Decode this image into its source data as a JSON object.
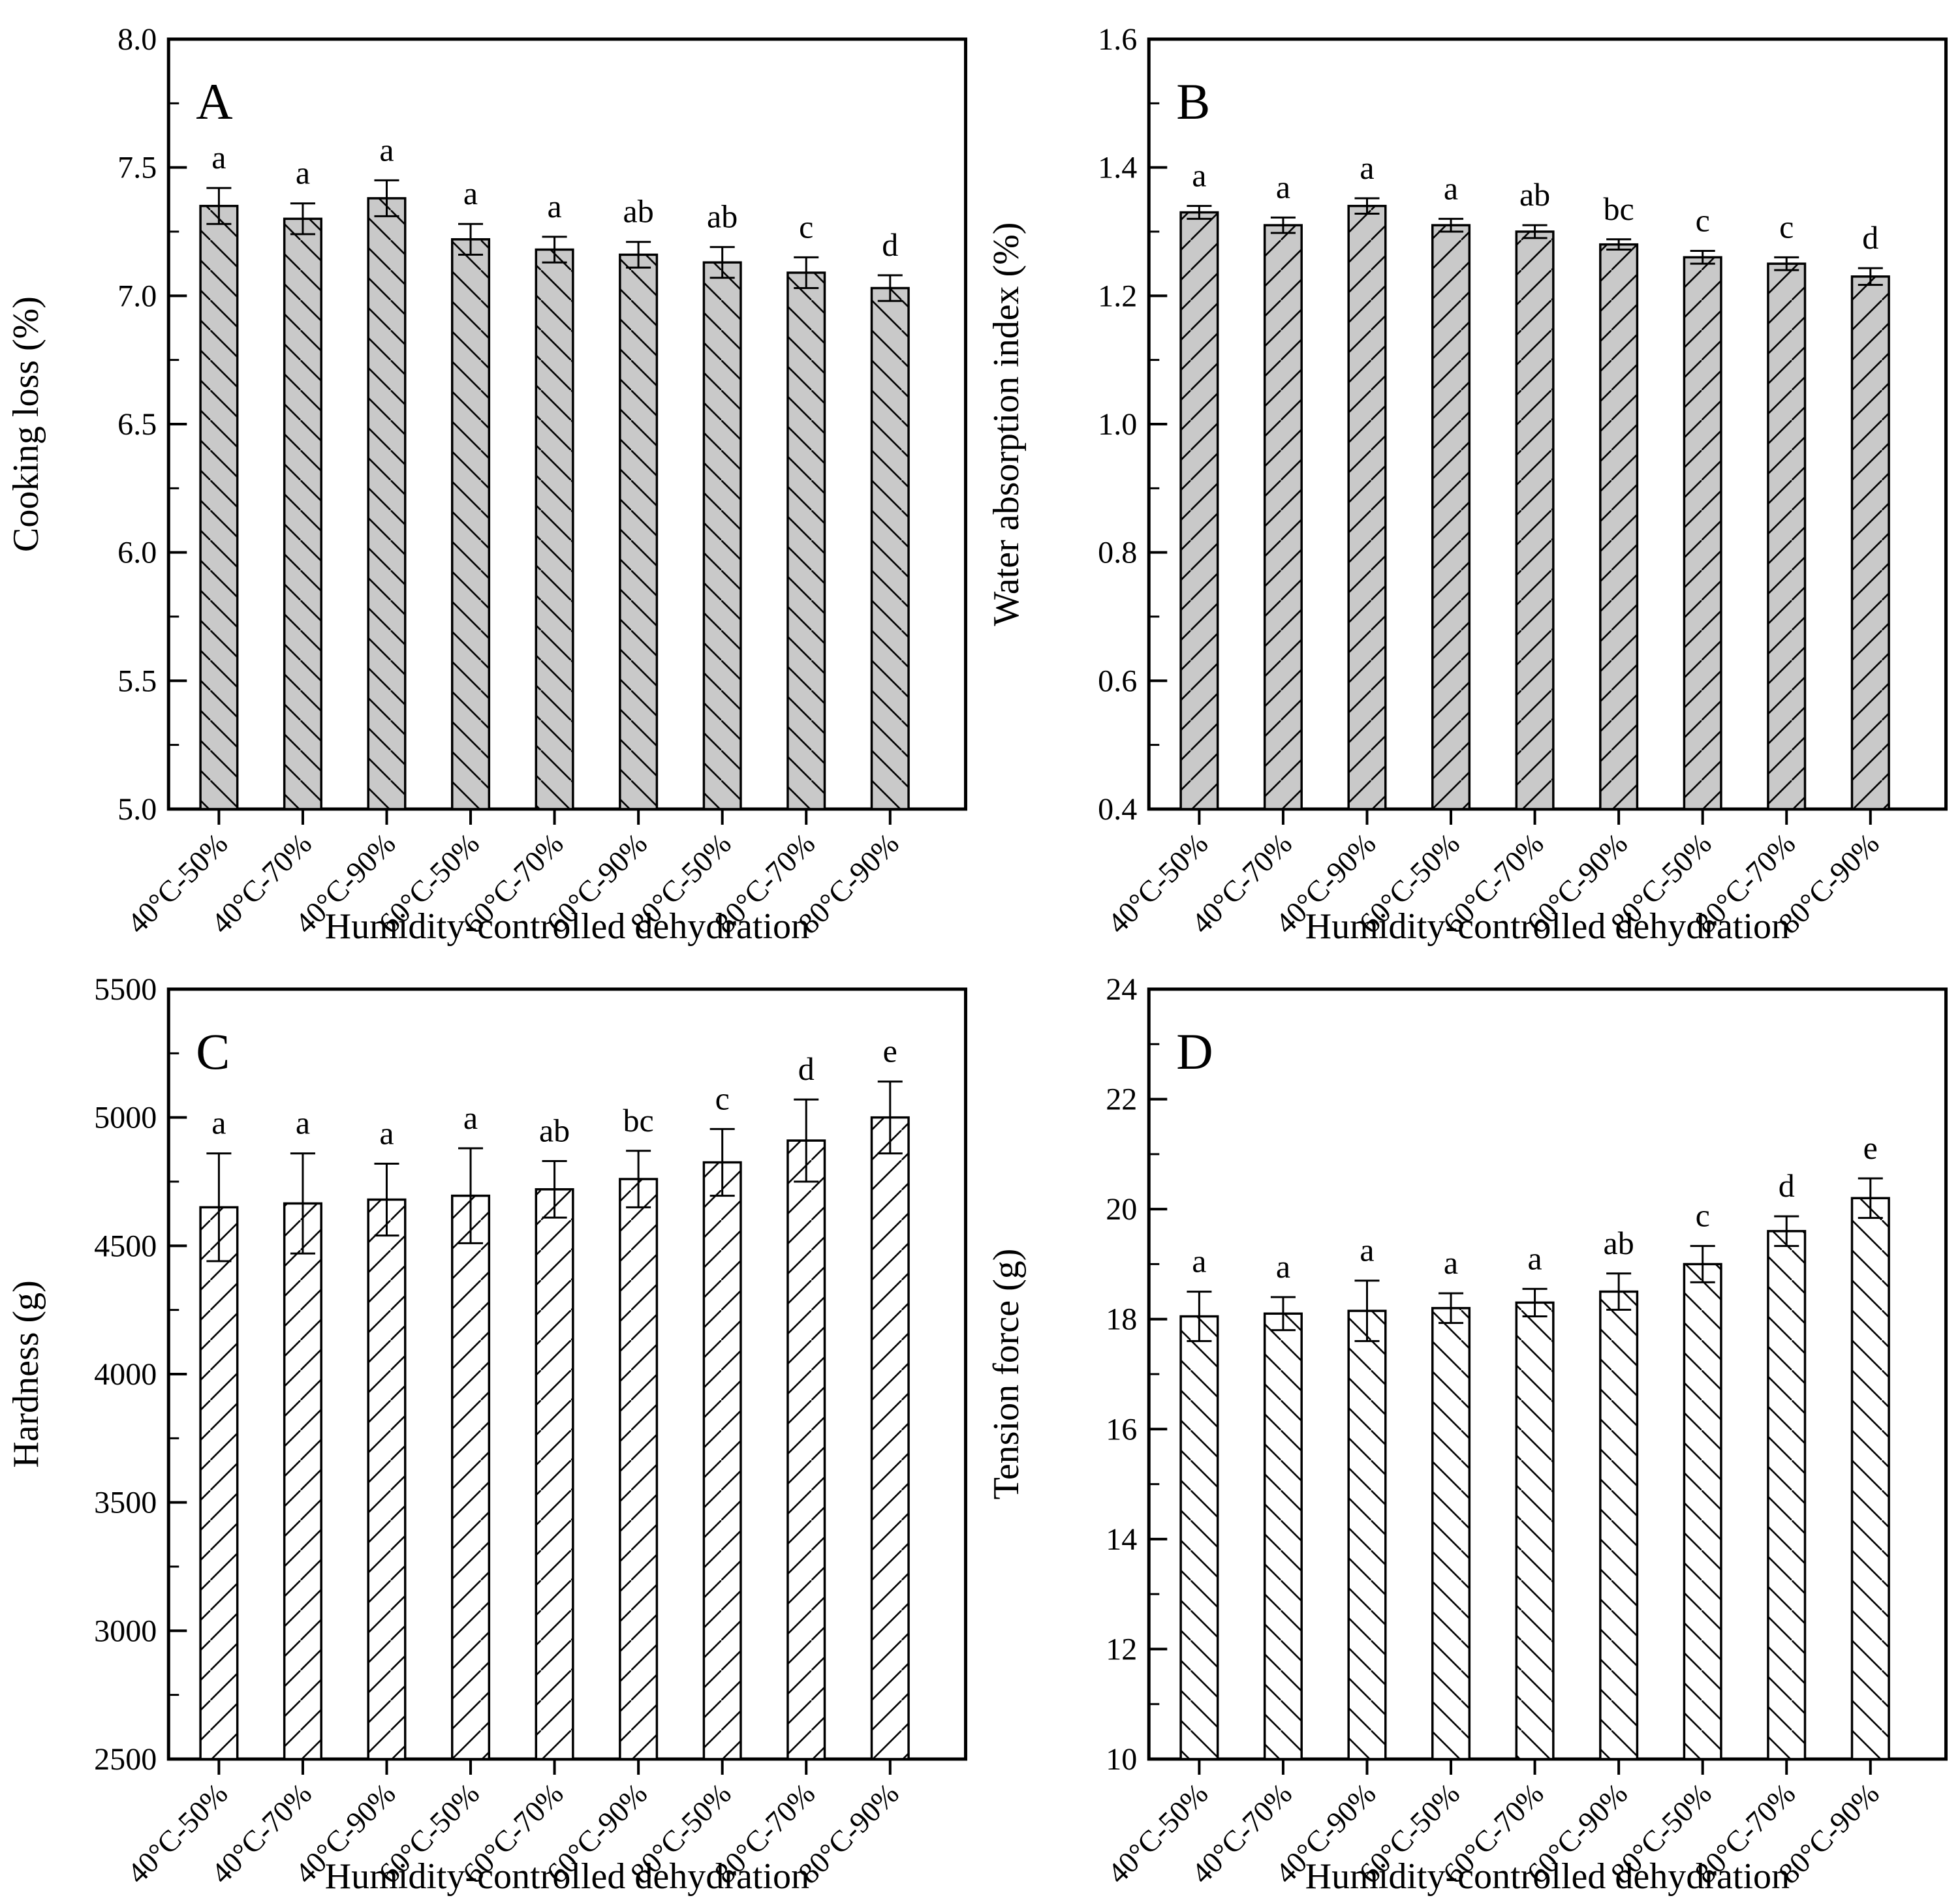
{
  "figure_title": "",
  "shared": {
    "x_axis_title": "Humidity-controlled dehydration",
    "categories": [
      "40°C-50%",
      "40°C-70%",
      "40°C-90%",
      "60°C-50%",
      "60°C-70%",
      "60°C-90%",
      "80°C-50%",
      "80°C-70%",
      "80°C-90%"
    ],
    "bar_gray": "#c9c9c9",
    "bar_white": "#ffffff",
    "line_color": "#000000"
  },
  "chart_data": [
    {
      "type": "bar",
      "panel_label": "A",
      "ylabel": "Cooking loss (%)",
      "xlabel": "Humidity-controlled dehydration",
      "categories": [
        "40°C-50%",
        "40°C-70%",
        "40°C-90%",
        "60°C-50%",
        "60°C-70%",
        "60°C-90%",
        "80°C-50%",
        "80°C-70%",
        "80°C-90%"
      ],
      "values": [
        7.35,
        7.3,
        7.38,
        7.22,
        7.18,
        7.16,
        7.13,
        7.09,
        7.03
      ],
      "errors": [
        0.07,
        0.06,
        0.07,
        0.06,
        0.05,
        0.05,
        0.06,
        0.06,
        0.05
      ],
      "sig_letters": [
        "a",
        "a",
        "a",
        "a",
        "a",
        "ab",
        "ab",
        "c",
        "d"
      ],
      "ylim": [
        5.0,
        8.0
      ],
      "ytick_labels": [
        "5.0",
        "5.5",
        "6.0",
        "6.5",
        "7.0",
        "7.5",
        "8.0"
      ],
      "yminor_step": 0.25,
      "bar_fill": "#c9c9c9",
      "hatch": "backslash",
      "grid": "off",
      "legend": "none"
    },
    {
      "type": "bar",
      "panel_label": "B",
      "ylabel": "Water absorption index (%)",
      "xlabel": "Humidity-controlled dehydration",
      "categories": [
        "40°C-50%",
        "40°C-70%",
        "40°C-90%",
        "60°C-50%",
        "60°C-70%",
        "60°C-90%",
        "80°C-50%",
        "80°C-70%",
        "80°C-90%"
      ],
      "values": [
        1.33,
        1.31,
        1.34,
        1.31,
        1.3,
        1.28,
        1.26,
        1.25,
        1.23
      ],
      "errors": [
        0.01,
        0.012,
        0.012,
        0.01,
        0.01,
        0.008,
        0.01,
        0.01,
        0.013
      ],
      "sig_letters": [
        "a",
        "a",
        "a",
        "a",
        "ab",
        "bc",
        "c",
        "c",
        "d"
      ],
      "ylim": [
        0.4,
        1.6
      ],
      "ytick_labels": [
        "0.4",
        "0.6",
        "0.8",
        "1.0",
        "1.2",
        "1.4",
        "1.6"
      ],
      "yminor_step": 0.1,
      "bar_fill": "#c9c9c9",
      "hatch": "slash",
      "grid": "off",
      "legend": "none"
    },
    {
      "type": "bar",
      "panel_label": "C",
      "ylabel": "Hardness (g)",
      "xlabel": "Humidity-controlled dehydration",
      "categories": [
        "40°C-50%",
        "40°C-70%",
        "40°C-90%",
        "60°C-50%",
        "60°C-70%",
        "60°C-90%",
        "80°C-50%",
        "80°C-70%",
        "80°C-90%"
      ],
      "values": [
        4650,
        4665,
        4680,
        4695,
        4720,
        4760,
        4825,
        4910,
        5000
      ],
      "errors": [
        210,
        195,
        140,
        185,
        110,
        110,
        130,
        160,
        140
      ],
      "sig_letters": [
        "a",
        "a",
        "a",
        "a",
        "ab",
        "bc",
        "c",
        "d",
        "e"
      ],
      "ylim": [
        2500,
        5500
      ],
      "ytick_labels": [
        "2500",
        "3000",
        "3500",
        "4000",
        "4500",
        "5000",
        "5500"
      ],
      "yminor_step": 250,
      "bar_fill": "#ffffff",
      "hatch": "slash",
      "grid": "off",
      "legend": "none"
    },
    {
      "type": "bar",
      "panel_label": "D",
      "ylabel": "Tension force (g)",
      "xlabel": "Humidity-controlled dehydration",
      "categories": [
        "40°C-50%",
        "40°C-70%",
        "40°C-90%",
        "60°C-50%",
        "60°C-70%",
        "60°C-90%",
        "80°C-50%",
        "80°C-70%",
        "80°C-90%"
      ],
      "values": [
        18.05,
        18.1,
        18.15,
        18.2,
        18.3,
        18.5,
        19.0,
        19.6,
        20.2
      ],
      "errors": [
        0.45,
        0.3,
        0.55,
        0.27,
        0.25,
        0.33,
        0.33,
        0.27,
        0.36
      ],
      "sig_letters": [
        "a",
        "a",
        "a",
        "a",
        "a",
        "ab",
        "c",
        "d",
        "e"
      ],
      "ylim": [
        10,
        24
      ],
      "ytick_labels": [
        "10",
        "12",
        "14",
        "16",
        "18",
        "20",
        "22",
        "24"
      ],
      "yminor_step": 1,
      "bar_fill": "#ffffff",
      "hatch": "backslash",
      "grid": "off",
      "legend": "none"
    }
  ]
}
